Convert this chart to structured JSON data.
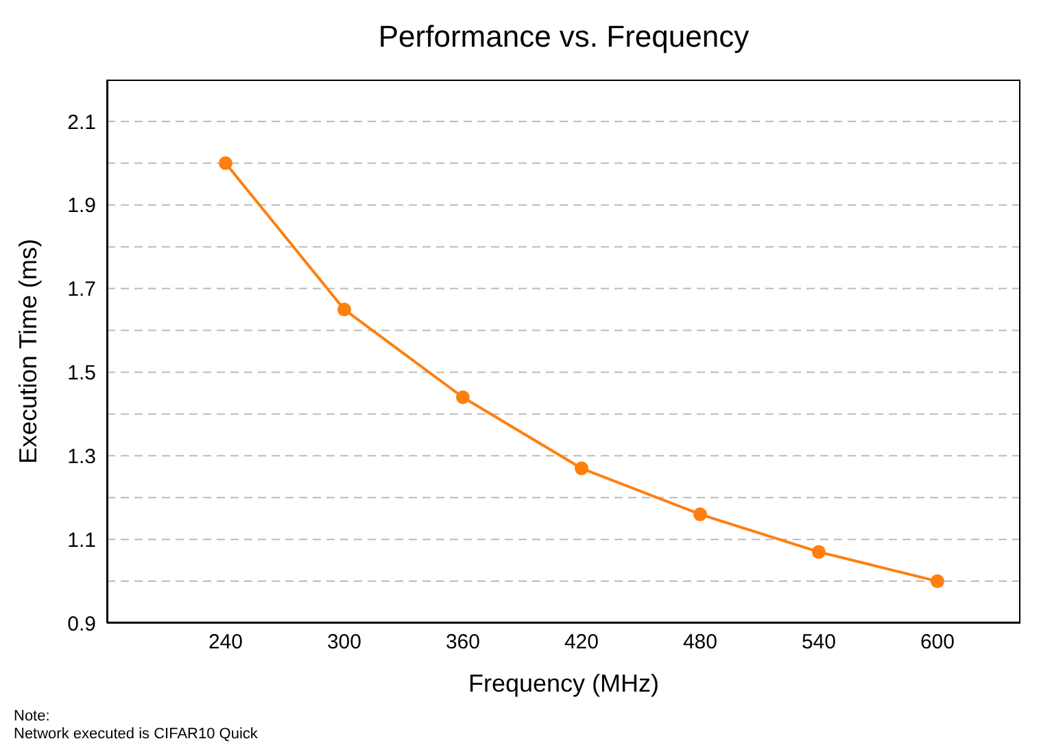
{
  "chart_data": {
    "type": "line",
    "title": "Performance vs. Frequency",
    "xlabel": "Frequency (MHz)",
    "ylabel": "Execution Time (ms)",
    "x": [
      240,
      300,
      360,
      420,
      480,
      540,
      600
    ],
    "series": [
      {
        "color": "#ff7f0e",
        "values": [
          2.0,
          1.65,
          1.44,
          1.27,
          1.16,
          1.07,
          1.0
        ]
      }
    ],
    "xlim": [
      180,
      642
    ],
    "xticks": [
      240,
      300,
      360,
      420,
      480,
      540,
      600
    ],
    "ylim": [
      0.9,
      2.2
    ],
    "yticks": [
      0.9,
      {
        "value": 1.0,
        "label": null
      },
      1.1,
      {
        "value": 1.2,
        "label": null
      },
      1.3,
      {
        "value": 1.4,
        "label": null
      },
      1.5,
      {
        "value": 1.6,
        "label": null
      },
      1.7,
      {
        "value": 1.8,
        "label": null
      },
      1.9,
      {
        "value": 2.0,
        "label": null
      },
      2.1
    ],
    "grid": "y",
    "marker": "circle",
    "line_style": "solid",
    "legend": false,
    "annotations": [
      "Note:",
      "Network executed is CIFAR10 Quick"
    ]
  }
}
